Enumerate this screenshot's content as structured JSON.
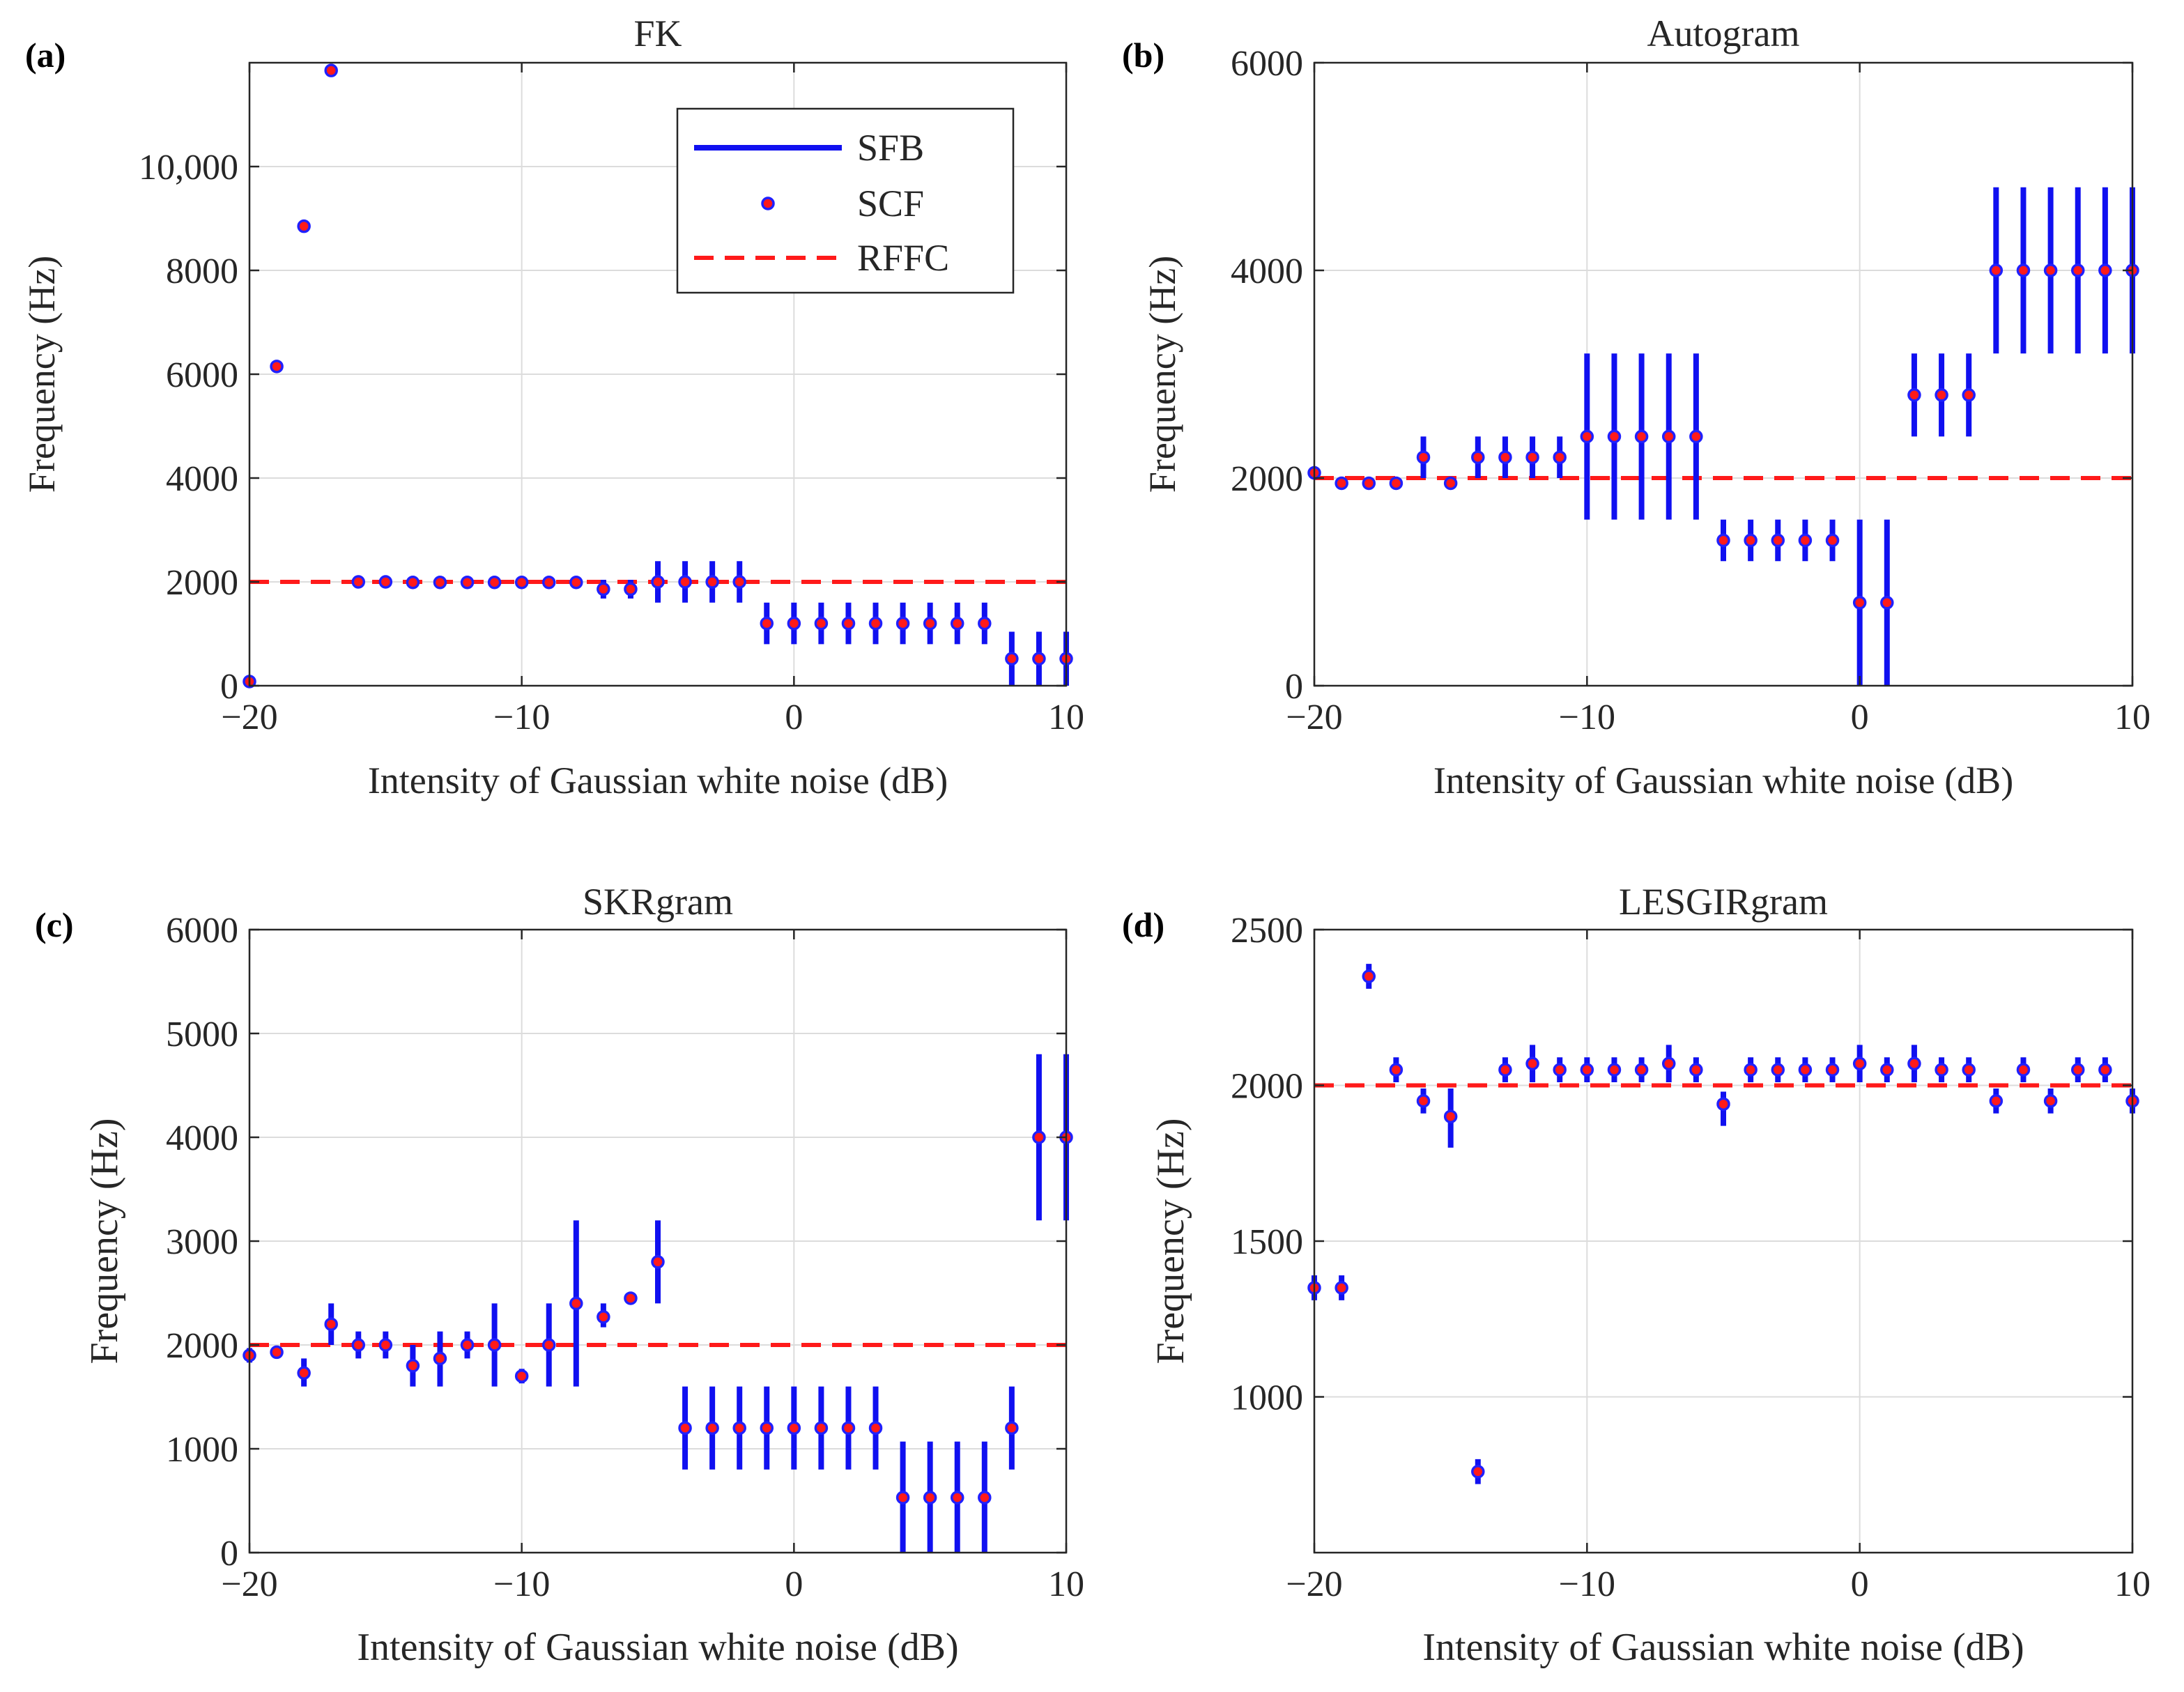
{
  "colors": {
    "bar": "#1010f0",
    "marker_fill": "#ff1a1a",
    "marker_edge": "#2020ff",
    "ref_line": "#ff1a1a",
    "grid": "#dcdcdc",
    "axis": "#262626"
  },
  "legend": {
    "sfb": "SFB",
    "scf": "SCF",
    "rffc": "RFFC"
  },
  "chart_data": [
    {
      "type": "scatter",
      "panel": "(a)",
      "title": "FK",
      "xlabel": "Intensity of Gaussian white noise (dB)",
      "ylabel": "Frequency (Hz)",
      "xlim": [
        -20,
        10
      ],
      "ylim": [
        0,
        12000
      ],
      "xticks": [
        -20,
        -10,
        0,
        10
      ],
      "xtick_labels": [
        "−20",
        "−10",
        "0",
        "10"
      ],
      "yticks": [
        0,
        2000,
        4000,
        6000,
        8000,
        10000
      ],
      "ytick_labels": [
        "0",
        "2000",
        "4000",
        "6000",
        "8000",
        "10,000"
      ],
      "ref_value": 2000,
      "legend_location": "top-right",
      "x": [
        -20,
        -19,
        -18,
        -17,
        -16,
        -15,
        -14,
        -13,
        -12,
        -11,
        -10,
        -9,
        -8,
        -7,
        -6,
        -5,
        -4,
        -3,
        -2,
        -1,
        0,
        1,
        2,
        3,
        4,
        5,
        6,
        7,
        8,
        9,
        10
      ],
      "scf": [
        80,
        6150,
        8850,
        11850,
        2000,
        2000,
        1990,
        1990,
        1990,
        1990,
        1990,
        1990,
        1990,
        1860,
        1860,
        2000,
        2000,
        2000,
        2000,
        1200,
        1200,
        1200,
        1200,
        1200,
        1200,
        1200,
        1200,
        1200,
        520,
        520,
        520
      ],
      "sfb_low": [
        80,
        6150,
        8850,
        11850,
        2000,
        2000,
        1990,
        1990,
        1990,
        1990,
        1990,
        1990,
        1990,
        1680,
        1680,
        1600,
        1600,
        1600,
        1600,
        800,
        800,
        800,
        800,
        800,
        800,
        800,
        800,
        800,
        0,
        0,
        0
      ],
      "sfb_high": [
        80,
        6150,
        8850,
        11850,
        2000,
        2000,
        1990,
        1990,
        1990,
        1990,
        1990,
        1990,
        1990,
        2040,
        2040,
        2400,
        2400,
        2400,
        2400,
        1600,
        1600,
        1600,
        1600,
        1600,
        1600,
        1600,
        1600,
        1600,
        1040,
        1040,
        1040
      ]
    },
    {
      "type": "scatter",
      "panel": "(b)",
      "title": "Autogram",
      "xlabel": "Intensity of Gaussian white noise (dB)",
      "ylabel": "Frequency (Hz)",
      "xlim": [
        -20,
        10
      ],
      "ylim": [
        0,
        6000
      ],
      "xticks": [
        -20,
        -10,
        0,
        10
      ],
      "xtick_labels": [
        "−20",
        "−10",
        "0",
        "10"
      ],
      "yticks": [
        0,
        2000,
        4000,
        6000
      ],
      "ytick_labels": [
        "0",
        "2000",
        "4000",
        "6000"
      ],
      "ref_value": 2000,
      "x": [
        -20,
        -19,
        -18,
        -17,
        -16,
        -15,
        -14,
        -13,
        -12,
        -11,
        -10,
        -9,
        -8,
        -7,
        -6,
        -5,
        -4,
        -3,
        -2,
        -1,
        0,
        1,
        2,
        3,
        4,
        5,
        6,
        7,
        8,
        9,
        10
      ],
      "scf": [
        2050,
        1950,
        1950,
        1950,
        2200,
        1950,
        2200,
        2200,
        2200,
        2200,
        2400,
        2400,
        2400,
        2400,
        2400,
        1400,
        1400,
        1400,
        1400,
        1400,
        800,
        800,
        2800,
        2800,
        2800,
        4000,
        4000,
        4000,
        4000,
        4000,
        4000
      ],
      "sfb_low": [
        2050,
        1950,
        1950,
        1950,
        2000,
        1950,
        2000,
        2000,
        2000,
        2000,
        1600,
        1600,
        1600,
        1600,
        1600,
        1200,
        1200,
        1200,
        1200,
        1200,
        0,
        0,
        2400,
        2400,
        2400,
        3200,
        3200,
        3200,
        3200,
        3200,
        3200
      ],
      "sfb_high": [
        2050,
        1950,
        1950,
        1950,
        2400,
        1950,
        2400,
        2400,
        2400,
        2400,
        3200,
        3200,
        3200,
        3200,
        3200,
        1600,
        1600,
        1600,
        1600,
        1600,
        1600,
        1600,
        3200,
        3200,
        3200,
        4800,
        4800,
        4800,
        4800,
        4800,
        4800
      ]
    },
    {
      "type": "scatter",
      "panel": "(c)",
      "title": "SKRgram",
      "xlabel": "Intensity of Gaussian white noise (dB)",
      "ylabel": "Frequency (Hz)",
      "xlim": [
        -20,
        10
      ],
      "ylim": [
        0,
        6000
      ],
      "xticks": [
        -20,
        -10,
        0,
        10
      ],
      "xtick_labels": [
        "−20",
        "−10",
        "0",
        "10"
      ],
      "yticks": [
        0,
        1000,
        2000,
        3000,
        4000,
        5000,
        6000
      ],
      "ytick_labels": [
        "0",
        "1000",
        "2000",
        "3000",
        "4000",
        "5000",
        "6000"
      ],
      "ref_value": 2000,
      "x": [
        -20,
        -19,
        -18,
        -17,
        -16,
        -15,
        -14,
        -13,
        -12,
        -11,
        -10,
        -9,
        -8,
        -7,
        -6,
        -5,
        -4,
        -3,
        -2,
        -1,
        0,
        1,
        2,
        3,
        4,
        5,
        6,
        7,
        8,
        9,
        10
      ],
      "scf": [
        1900,
        1930,
        1730,
        2200,
        2000,
        2000,
        1800,
        1870,
        2000,
        2000,
        1700,
        2000,
        2400,
        2270,
        2450,
        2800,
        1200,
        1200,
        1200,
        1200,
        1200,
        1200,
        1200,
        1200,
        530,
        530,
        530,
        530,
        1200,
        4000,
        4000
      ],
      "sfb_low": [
        1830,
        1880,
        1600,
        2000,
        1870,
        1870,
        1600,
        1600,
        1870,
        1600,
        1630,
        1600,
        1600,
        2170,
        2420,
        2400,
        800,
        800,
        800,
        800,
        800,
        800,
        800,
        800,
        0,
        0,
        0,
        0,
        800,
        3200,
        3200
      ],
      "sfb_high": [
        1970,
        1970,
        1870,
        2400,
        2130,
        2130,
        2000,
        2130,
        2130,
        2400,
        1770,
        2400,
        3200,
        2400,
        2480,
        3200,
        1600,
        1600,
        1600,
        1600,
        1600,
        1600,
        1600,
        1600,
        1070,
        1070,
        1070,
        1070,
        1600,
        4800,
        4800
      ]
    },
    {
      "type": "scatter",
      "panel": "(d)",
      "title": "LESGIRgram",
      "xlabel": "Intensity of Gaussian white noise (dB)",
      "ylabel": "Frequency (Hz)",
      "xlim": [
        -20,
        10
      ],
      "ylim": [
        500,
        2500
      ],
      "xticks": [
        -20,
        -10,
        0,
        10
      ],
      "xtick_labels": [
        "−20",
        "−10",
        "0",
        "10"
      ],
      "yticks": [
        1000,
        1500,
        2000,
        2500
      ],
      "ytick_labels": [
        "1000",
        "1500",
        "2000",
        "2500"
      ],
      "ref_value": 2000,
      "x": [
        -20,
        -19,
        -18,
        -17,
        -16,
        -15,
        -14,
        -13,
        -12,
        -11,
        -10,
        -9,
        -8,
        -7,
        -6,
        -5,
        -4,
        -3,
        -2,
        -1,
        0,
        1,
        2,
        3,
        4,
        5,
        6,
        7,
        8,
        9,
        10
      ],
      "scf": [
        1350,
        1350,
        2350,
        2050,
        1950,
        1900,
        760,
        2050,
        2070,
        2050,
        2050,
        2050,
        2050,
        2070,
        2050,
        1940,
        2050,
        2050,
        2050,
        2050,
        2070,
        2050,
        2070,
        2050,
        2050,
        1950,
        2050,
        1950,
        2050,
        2050,
        1950
      ],
      "sfb_low": [
        1310,
        1310,
        2310,
        2010,
        1910,
        1800,
        720,
        2010,
        2010,
        2010,
        2010,
        2010,
        2010,
        2010,
        2010,
        1870,
        2010,
        2010,
        2010,
        2010,
        2010,
        2010,
        2010,
        2010,
        2010,
        1910,
        2010,
        1910,
        2010,
        2010,
        1910
      ],
      "sfb_high": [
        1390,
        1390,
        2390,
        2090,
        1990,
        1990,
        800,
        2090,
        2130,
        2090,
        2090,
        2090,
        2090,
        2130,
        2090,
        1980,
        2090,
        2090,
        2090,
        2090,
        2130,
        2090,
        2130,
        2090,
        2090,
        1990,
        2090,
        1990,
        2090,
        2090,
        1990
      ]
    }
  ]
}
